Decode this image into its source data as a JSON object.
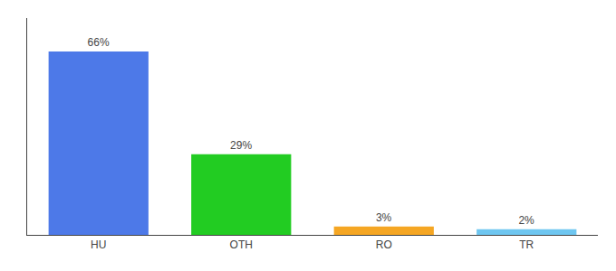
{
  "chart_data": {
    "type": "bar",
    "categories": [
      "HU",
      "OTH",
      "RO",
      "TR"
    ],
    "values": [
      66,
      29,
      3,
      2
    ],
    "value_labels": [
      "66%",
      "29%",
      "3%",
      "2%"
    ],
    "data_labels": true,
    "colors": [
      "#4d79e8",
      "#22cc22",
      "#f5a623",
      "#6ec6f0"
    ],
    "ylim": [
      0,
      78
    ],
    "grid": false,
    "tick_labels": "x"
  }
}
